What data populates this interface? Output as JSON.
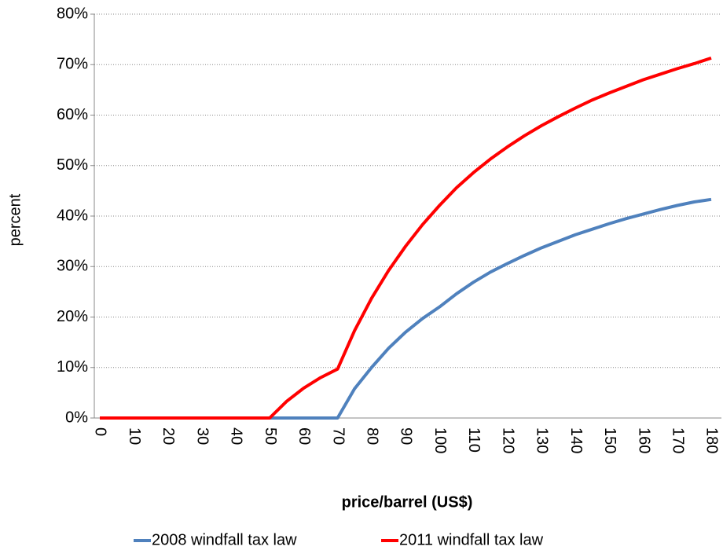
{
  "chart_data": {
    "type": "line",
    "x_label": "price/barrel (US$)",
    "y_label": "percent",
    "categories": [
      "0",
      null,
      "10",
      null,
      "20",
      null,
      "30",
      null,
      "40",
      null,
      "50",
      null,
      "60",
      null,
      "70",
      null,
      "80",
      null,
      "90",
      null,
      "100",
      null,
      "110",
      null,
      "120",
      null,
      "130",
      null,
      "140",
      null,
      "150",
      null,
      "160",
      null,
      "170",
      null,
      "180"
    ],
    "series": [
      {
        "name": "2008 windfall tax law",
        "color": "#4f81bd",
        "values": [
          0,
          0,
          0,
          0,
          0,
          0,
          0,
          0,
          0,
          0,
          0,
          0,
          0,
          0,
          0,
          5.8,
          10,
          13.8,
          17,
          19.7,
          22,
          24.6,
          26.9,
          28.9,
          30.6,
          32.2,
          33.7,
          35,
          36.3,
          37.4,
          38.5,
          39.5,
          40.4,
          41.3,
          42.1,
          42.8,
          43.3
        ]
      },
      {
        "name": "2011 windfall tax law",
        "color": "#ff0000",
        "values": [
          0,
          0,
          0,
          0,
          0,
          0,
          0,
          0,
          0,
          0,
          0,
          3.3,
          5.9,
          8,
          9.7,
          17.3,
          23.7,
          29.2,
          34,
          38.3,
          42.1,
          45.6,
          48.6,
          51.3,
          53.7,
          55.9,
          57.9,
          59.7,
          61.4,
          63,
          64.4,
          65.7,
          67,
          68.1,
          69.2,
          70.2,
          71.3
        ]
      }
    ],
    "ylim": [
      0,
      80
    ],
    "yticks": [
      {
        "value": 0,
        "label": "0%"
      },
      {
        "value": 10,
        "label": "10%"
      },
      {
        "value": 20,
        "label": "20%"
      },
      {
        "value": 30,
        "label": "30%"
      },
      {
        "value": 40,
        "label": "40%"
      },
      {
        "value": 50,
        "label": "50%"
      },
      {
        "value": 60,
        "label": "60%"
      },
      {
        "value": 70,
        "label": "70%"
      },
      {
        "value": 80,
        "label": "80%"
      }
    ],
    "grid": true,
    "legend": "bottom"
  }
}
